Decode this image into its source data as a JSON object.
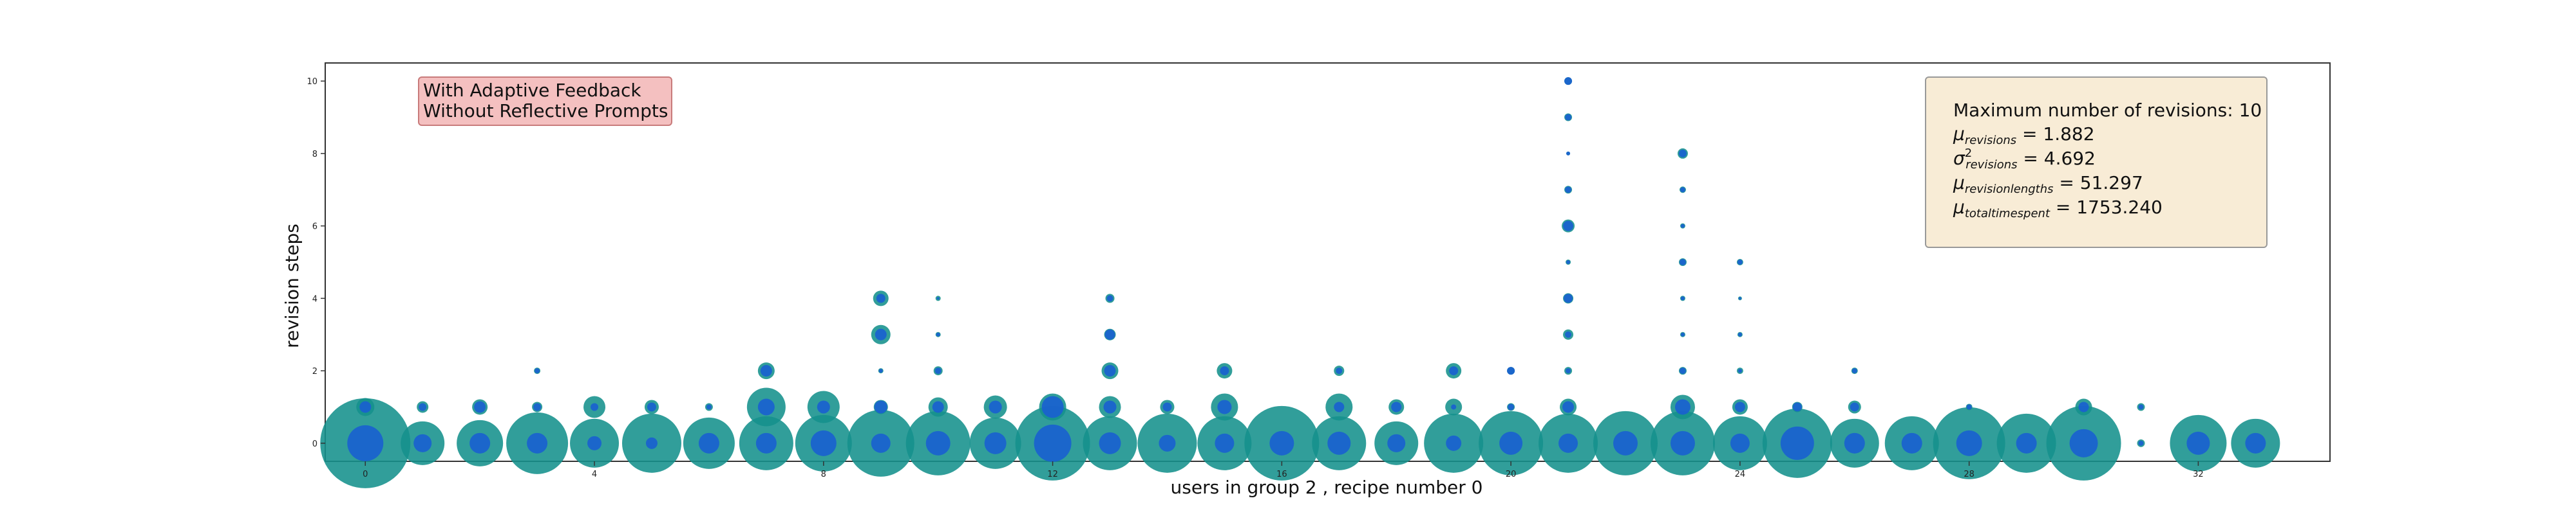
{
  "chart_data": {
    "type": "scatter",
    "xlabel": "users in group 2 , recipe number 0",
    "ylabel": "revision steps",
    "xlim": [
      -0.7,
      34.3
    ],
    "ylim": [
      -0.5,
      10.5
    ],
    "xticks": [
      0,
      4,
      8,
      12,
      16,
      20,
      24,
      28,
      32
    ],
    "yticks": [
      0,
      2,
      4,
      6,
      8,
      10
    ],
    "grid": false,
    "colors": {
      "outer": "#14918c",
      "inner": "#1a5fd0"
    },
    "note": {
      "lines": [
        "With Adaptive Feedback",
        "Without Reflective Prompts"
      ],
      "fill": "#f4c0c0",
      "stroke": "#c87a7a"
    },
    "stats": {
      "title": "Maximum number of revisions: 10",
      "mu_revisions": "1.882",
      "sigma2_revisions": "4.692",
      "mu_revision_lengths": "51.297",
      "mu_total_time_spent": "1753.240",
      "fill": "#f8ecd6",
      "stroke": "#999999"
    },
    "points": [
      {
        "x": 0,
        "y": 0,
        "o": 70,
        "i": 28
      },
      {
        "x": 0,
        "y": 1,
        "o": 14,
        "i": 9
      },
      {
        "x": 1,
        "y": 0,
        "o": 34,
        "i": 14
      },
      {
        "x": 1,
        "y": 1,
        "o": 9,
        "i": 6
      },
      {
        "x": 2,
        "y": 0,
        "o": 36,
        "i": 16
      },
      {
        "x": 2,
        "y": 1,
        "o": 12,
        "i": 9
      },
      {
        "x": 3,
        "y": 0,
        "o": 48,
        "i": 16
      },
      {
        "x": 3,
        "y": 1,
        "o": 8,
        "i": 6
      },
      {
        "x": 3,
        "y": 2,
        "o": 5,
        "i": 4
      },
      {
        "x": 4,
        "y": 0,
        "o": 38,
        "i": 11
      },
      {
        "x": 4,
        "y": 1,
        "o": 17,
        "i": 6
      },
      {
        "x": 5,
        "y": 0,
        "o": 46,
        "i": 9
      },
      {
        "x": 5,
        "y": 1,
        "o": 11,
        "i": 7
      },
      {
        "x": 6,
        "y": 0,
        "o": 40,
        "i": 16
      },
      {
        "x": 6,
        "y": 1,
        "o": 6,
        "i": 4
      },
      {
        "x": 7,
        "y": 0,
        "o": 42,
        "i": 16
      },
      {
        "x": 7,
        "y": 1,
        "o": 30,
        "i": 13
      },
      {
        "x": 7,
        "y": 2,
        "o": 13,
        "i": 9
      },
      {
        "x": 8,
        "y": 0,
        "o": 44,
        "i": 20
      },
      {
        "x": 8,
        "y": 1,
        "o": 25,
        "i": 10
      },
      {
        "x": 9,
        "y": 0,
        "o": 52,
        "i": 15
      },
      {
        "x": 9,
        "y": 1,
        "o": 11,
        "i": 10
      },
      {
        "x": 9,
        "y": 2,
        "o": 4,
        "i": 3
      },
      {
        "x": 9,
        "y": 3,
        "o": 15,
        "i": 9
      },
      {
        "x": 9,
        "y": 4,
        "o": 12,
        "i": 7
      },
      {
        "x": 10,
        "y": 0,
        "o": 50,
        "i": 19
      },
      {
        "x": 10,
        "y": 1,
        "o": 15,
        "i": 9
      },
      {
        "x": 10,
        "y": 2,
        "o": 7,
        "i": 5
      },
      {
        "x": 10,
        "y": 3,
        "o": 4,
        "i": 3
      },
      {
        "x": 10,
        "y": 4,
        "o": 4,
        "i": 2
      },
      {
        "x": 11,
        "y": 0,
        "o": 40,
        "i": 17
      },
      {
        "x": 11,
        "y": 1,
        "o": 18,
        "i": 10
      },
      {
        "x": 12,
        "y": 0,
        "o": 58,
        "i": 29
      },
      {
        "x": 12,
        "y": 1,
        "o": 21,
        "i": 17
      },
      {
        "x": 13,
        "y": 0,
        "o": 42,
        "i": 17
      },
      {
        "x": 13,
        "y": 1,
        "o": 17,
        "i": 10
      },
      {
        "x": 13,
        "y": 2,
        "o": 13,
        "i": 9
      },
      {
        "x": 13,
        "y": 3,
        "o": 9,
        "i": 8
      },
      {
        "x": 13,
        "y": 4,
        "o": 7,
        "i": 5
      },
      {
        "x": 14,
        "y": 0,
        "o": 46,
        "i": 13
      },
      {
        "x": 14,
        "y": 1,
        "o": 11,
        "i": 7
      },
      {
        "x": 15,
        "y": 0,
        "o": 42,
        "i": 15
      },
      {
        "x": 15,
        "y": 1,
        "o": 21,
        "i": 11
      },
      {
        "x": 15,
        "y": 2,
        "o": 12,
        "i": 7
      },
      {
        "x": 16,
        "y": 0,
        "o": 58,
        "i": 19
      },
      {
        "x": 17,
        "y": 0,
        "o": 42,
        "i": 18
      },
      {
        "x": 17,
        "y": 1,
        "o": 21,
        "i": 8
      },
      {
        "x": 17,
        "y": 2,
        "o": 8,
        "i": 5
      },
      {
        "x": 18,
        "y": 0,
        "o": 34,
        "i": 14
      },
      {
        "x": 18,
        "y": 1,
        "o": 12,
        "i": 8
      },
      {
        "x": 19,
        "y": 0,
        "o": 46,
        "i": 12
      },
      {
        "x": 19,
        "y": 1,
        "o": 13,
        "i": 4
      },
      {
        "x": 19,
        "y": 2,
        "o": 12,
        "i": 7
      },
      {
        "x": 20,
        "y": 0,
        "o": 50,
        "i": 18
      },
      {
        "x": 20,
        "y": 1,
        "o": 6,
        "i": 5
      },
      {
        "x": 20,
        "y": 2,
        "o": 6,
        "i": 6
      },
      {
        "x": 21,
        "y": 0,
        "o": 46,
        "i": 15
      },
      {
        "x": 21,
        "y": 1,
        "o": 13,
        "i": 9
      },
      {
        "x": 21,
        "y": 2,
        "o": 6,
        "i": 4
      },
      {
        "x": 21,
        "y": 3,
        "o": 8,
        "i": 5
      },
      {
        "x": 21,
        "y": 4,
        "o": 8,
        "i": 7
      },
      {
        "x": 21,
        "y": 5,
        "o": 4,
        "i": 3
      },
      {
        "x": 21,
        "y": 6,
        "o": 10,
        "i": 8
      },
      {
        "x": 21,
        "y": 7,
        "o": 6,
        "i": 5
      },
      {
        "x": 21,
        "y": 8,
        "o": 3,
        "i": 3
      },
      {
        "x": 21,
        "y": 9,
        "o": 6,
        "i": 5
      },
      {
        "x": 21,
        "y": 10,
        "o": 6,
        "i": 6
      },
      {
        "x": 22,
        "y": 0,
        "o": 50,
        "i": 19
      },
      {
        "x": 23,
        "y": 0,
        "o": 50,
        "i": 19
      },
      {
        "x": 23,
        "y": 1,
        "o": 19,
        "i": 12
      },
      {
        "x": 23,
        "y": 2,
        "o": 6,
        "i": 5
      },
      {
        "x": 23,
        "y": 3,
        "o": 4,
        "i": 3
      },
      {
        "x": 23,
        "y": 4,
        "o": 4,
        "i": 3
      },
      {
        "x": 23,
        "y": 5,
        "o": 6,
        "i": 5
      },
      {
        "x": 23,
        "y": 6,
        "o": 4,
        "i": 3
      },
      {
        "x": 23,
        "y": 7,
        "o": 5,
        "i": 4
      },
      {
        "x": 23,
        "y": 8,
        "o": 8,
        "i": 6
      },
      {
        "x": 24,
        "y": 0,
        "o": 42,
        "i": 15
      },
      {
        "x": 24,
        "y": 1,
        "o": 12,
        "i": 8
      },
      {
        "x": 24,
        "y": 2,
        "o": 5,
        "i": 3
      },
      {
        "x": 24,
        "y": 3,
        "o": 4,
        "i": 3
      },
      {
        "x": 24,
        "y": 4,
        "o": 3,
        "i": 2
      },
      {
        "x": 24,
        "y": 5,
        "o": 5,
        "i": 4
      },
      {
        "x": 25,
        "y": 0,
        "o": 54,
        "i": 26
      },
      {
        "x": 25,
        "y": 1,
        "o": 8,
        "i": 7
      },
      {
        "x": 26,
        "y": 0,
        "o": 38,
        "i": 16
      },
      {
        "x": 26,
        "y": 1,
        "o": 10,
        "i": 7
      },
      {
        "x": 26,
        "y": 2,
        "o": 5,
        "i": 4
      },
      {
        "x": 27,
        "y": 0,
        "o": 42,
        "i": 16
      },
      {
        "x": 28,
        "y": 0,
        "o": 56,
        "i": 20
      },
      {
        "x": 28,
        "y": 1,
        "o": 5,
        "i": 4
      },
      {
        "x": 29,
        "y": 0,
        "o": 46,
        "i": 16
      },
      {
        "x": 30,
        "y": 0,
        "o": 58,
        "i": 22
      },
      {
        "x": 30,
        "y": 1,
        "o": 13,
        "i": 8
      },
      {
        "x": 31,
        "y": 0,
        "o": 6,
        "i": 4
      },
      {
        "x": 31,
        "y": 1,
        "o": 6,
        "i": 4
      },
      {
        "x": 32,
        "y": 0,
        "o": 44,
        "i": 18
      },
      {
        "x": 33,
        "y": 0,
        "o": 38,
        "i": 16
      }
    ]
  }
}
